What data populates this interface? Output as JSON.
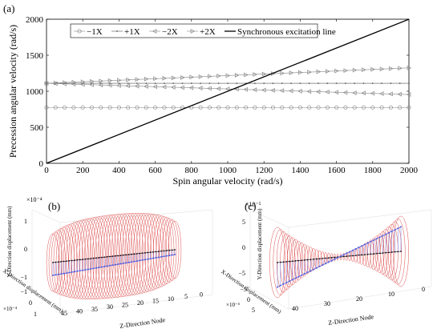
{
  "panel_a": {
    "label": "(a)",
    "chart_data": {
      "type": "line",
      "xlabel": "Spin angular velocity (rad/s)",
      "ylabel": "Precession angular velocity (rad/s)",
      "xlim": [
        0,
        2000
      ],
      "ylim": [
        0,
        2000
      ],
      "xticks": [
        0,
        200,
        400,
        600,
        800,
        1000,
        1200,
        1400,
        1600,
        1800,
        2000
      ],
      "yticks": [
        0,
        500,
        1000,
        1500,
        2000
      ],
      "grid": false,
      "legend_position": "top-center",
      "x": [
        0,
        50,
        100,
        150,
        200,
        250,
        300,
        350,
        400,
        450,
        500,
        550,
        600,
        650,
        700,
        750,
        800,
        850,
        900,
        950,
        1000,
        1050,
        1100,
        1150,
        1200,
        1250,
        1300,
        1350,
        1400,
        1450,
        1500,
        1550,
        1600,
        1650,
        1700,
        1750,
        1800,
        1850,
        1900,
        1950,
        2000
      ],
      "series": [
        {
          "name": "−1X",
          "marker": "circle",
          "color": "#888888",
          "start": 775,
          "end": 775
        },
        {
          "name": "+1X",
          "marker": "dot",
          "color": "#555555",
          "start": 1110,
          "end": 1110
        },
        {
          "name": "−2X",
          "marker": "triangle-left",
          "color": "#888888",
          "start": 1110,
          "end": 955
        },
        {
          "name": "+2X",
          "marker": "triangle-right",
          "color": "#888888",
          "start": 1110,
          "end": 1325
        },
        {
          "name": "Synchronous excitation line",
          "marker": "none",
          "color": "#000000",
          "start": 0,
          "end": 2000
        }
      ]
    }
  },
  "panel_b": {
    "label": "(b)",
    "exponent": "×10⁻⁴",
    "y_label": "Y-Direction displacement (mm)",
    "x_label": "X-Direction displacement (mm)",
    "z_label": "Z-Direction Node",
    "y_ticks": [
      "1",
      "0",
      "−1"
    ],
    "x_ticks": [
      "−1",
      "0",
      "1"
    ],
    "x_exponent": "×10⁻⁴",
    "z_ticks": [
      "45",
      "40",
      "35",
      "30",
      "25",
      "20",
      "15",
      "10",
      "5",
      "0"
    ]
  },
  "panel_c": {
    "label": "(c)",
    "exponent": "×10⁻⁵",
    "y_label": "Y-Direction displacement (mm)",
    "x_label": "X-Direction displacement (mm)",
    "z_label": "Z-Direction Node",
    "y_ticks": [
      "5",
      "0",
      "−5"
    ],
    "x_ticks": [
      "−5",
      "0",
      "5"
    ],
    "x_exponent": "×10⁻⁵",
    "z_ticks": [
      "40",
      "30",
      "20",
      "10",
      "0"
    ]
  },
  "colors": {
    "orbit": "#e05050",
    "mode_line": "#5060e0",
    "axis_line": "#000000"
  }
}
